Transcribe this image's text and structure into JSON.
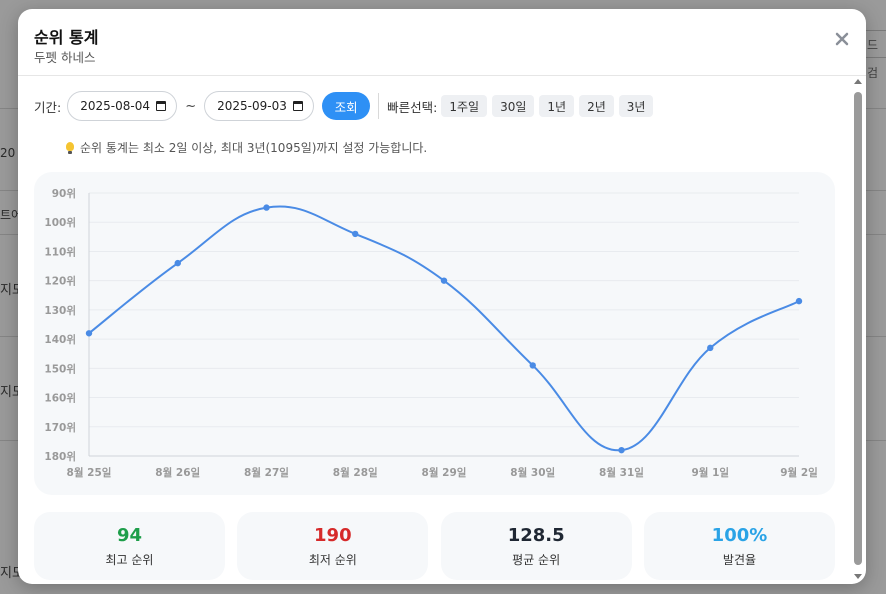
{
  "background": {
    "fragments": [
      "20",
      "트어",
      "지도",
      "지도",
      "지도"
    ],
    "right_fragment": "드 검"
  },
  "modal": {
    "title": "순위 통계",
    "subtitle": "두펫 하네스",
    "close_icon": "close-icon"
  },
  "filters": {
    "period_label": "기간:",
    "start_date": "2025-08-04",
    "separator": "~",
    "end_date": "2025-09-03",
    "search_label": "조회",
    "quick_label": "빠른선택:",
    "quick_options": [
      "1주일",
      "30일",
      "1년",
      "2년",
      "3년"
    ]
  },
  "hint": {
    "icon": "lightbulb-icon",
    "text": "순위 통계는 최소 2일 이상, 최대 3년(1095일)까지 설정 가능합니다."
  },
  "chart_data": {
    "type": "line",
    "categories": [
      "8월 25일",
      "8월 26일",
      "8월 27일",
      "8월 28일",
      "8월 29일",
      "8월 30일",
      "8월 31일",
      "9월 1일",
      "9월 2일"
    ],
    "series": [
      {
        "values": [
          138,
          114,
          95,
          104,
          120,
          149,
          178,
          143,
          127
        ],
        "color": "#4a8be5"
      }
    ],
    "y_ticks": [
      "90위",
      "100위",
      "110위",
      "120위",
      "130위",
      "140위",
      "150위",
      "160위",
      "170위",
      "180위"
    ],
    "ylim": [
      90,
      180
    ],
    "y_inverted": true,
    "grid": true
  },
  "stats": [
    {
      "value": "94",
      "label": "최고 순위",
      "color": "#1e9e4a"
    },
    {
      "value": "190",
      "label": "최저 순위",
      "color": "#d62a2a"
    },
    {
      "value": "128.5",
      "label": "평균 순위",
      "color": "#1f2733"
    },
    {
      "value": "100%",
      "label": "발견율",
      "color": "#2aa3e6"
    }
  ]
}
